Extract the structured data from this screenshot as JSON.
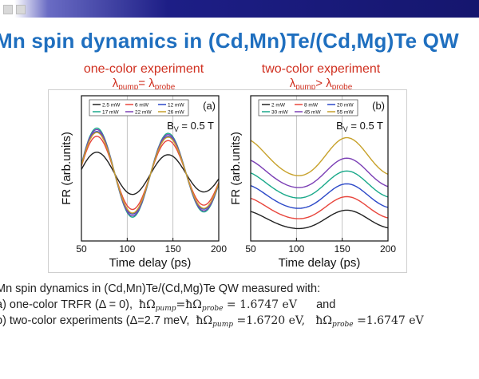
{
  "slide": {
    "title": "Mn spin dynamics in (Cd,Mn)Te/(Cd,Mg)Te QW",
    "left_label": {
      "line1": "one-color experiment",
      "lambda": "λ",
      "sub1": "pump",
      "rel": "= ",
      "sub2": "probe"
    },
    "right_label": {
      "line1": "two-color experiment",
      "lambda": "λ",
      "sub1": "pump",
      "rel": "> ",
      "sub2": "probe"
    },
    "text": {
      "line1": "Mn spin dynamics in (Cd,Mn)Te/(Cd,Mg)Te QW measured with:",
      "line2_prefix": "a) one-color TRFR (Δ = 0),",
      "line2_eq": "= 1.6747 eV",
      "line2_and": "and",
      "line3_prefix": "b) two-color experiments (Δ=2.7 meV,",
      "line3_eq1": "=1.6720 eV,",
      "line3_eq2": "=1.6747 eV",
      "hbar": "ħΩ",
      "pump": "pump",
      "probe": "probe"
    }
  },
  "chart_data": [
    {
      "type": "line",
      "panel": "(a)",
      "field_label": "B",
      "field_sub": "V",
      "field_value": "= 0.5 T",
      "xlabel": "Time delay (ps)",
      "ylabel": "FR (arb.units)",
      "xlim": [
        50,
        200
      ],
      "xticks": [
        50,
        100,
        150,
        200
      ],
      "series": [
        {
          "name": "2.5 mW",
          "color": "#222222",
          "amp": 0.45
        },
        {
          "name": "6 mW",
          "color": "#e8453c",
          "amp": 0.78
        },
        {
          "name": "12 mW",
          "color": "#2c49c8",
          "amp": 0.88
        },
        {
          "name": "17 mW",
          "color": "#1aa98a",
          "amp": 0.95
        },
        {
          "name": "22 mW",
          "color": "#7b3fb5",
          "amp": 0.92
        },
        {
          "name": "26 mW",
          "color": "#c7a12a",
          "amp": 0.86
        }
      ]
    },
    {
      "type": "line",
      "panel": "(b)",
      "field_label": "B",
      "field_sub": "V",
      "field_value": "= 0.5 T",
      "xlabel": "Time delay (ps)",
      "ylabel": "FR (arb.units)",
      "xlim": [
        50,
        200
      ],
      "xticks": [
        50,
        100,
        150,
        200
      ],
      "series": [
        {
          "name": "2 mW",
          "color": "#222222",
          "amp": 0.3,
          "offset": 0.0
        },
        {
          "name": "8 mW",
          "color": "#e8453c",
          "amp": 0.36,
          "offset": 0.8
        },
        {
          "name": "20 mW",
          "color": "#2c49c8",
          "amp": 0.4,
          "offset": 1.6
        },
        {
          "name": "30 mW",
          "color": "#1aa98a",
          "amp": 0.44,
          "offset": 2.4
        },
        {
          "name": "45 mW",
          "color": "#7b3fb5",
          "amp": 0.48,
          "offset": 3.2
        },
        {
          "name": "55 mW",
          "color": "#c7a12a",
          "amp": 0.62,
          "offset": 4.3
        }
      ]
    }
  ]
}
